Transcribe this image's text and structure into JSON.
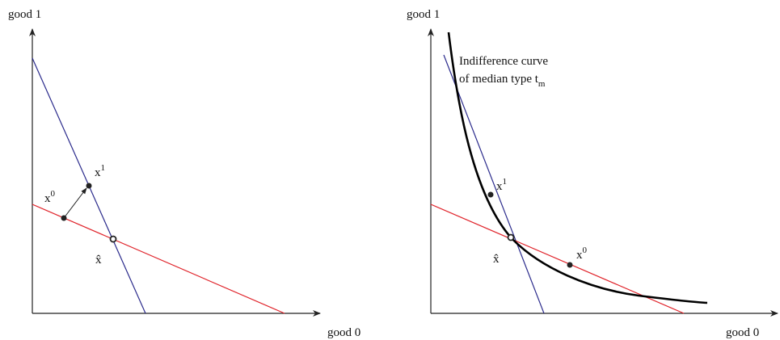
{
  "panels": [
    {
      "y_axis_label": "good 1",
      "x_axis_label": "good 0",
      "points": [
        {
          "label": "x",
          "superscript": "0"
        },
        {
          "label": "x",
          "superscript": "1"
        },
        {
          "label": "x̂"
        }
      ]
    },
    {
      "y_axis_label": "good 1",
      "x_axis_label": "good 0",
      "points": [
        {
          "label": "x",
          "superscript": "0"
        },
        {
          "label": "x",
          "superscript": "1"
        },
        {
          "label": "x̂"
        }
      ],
      "annotation": {
        "line1": "Indifference curve",
        "line2": "of median type t",
        "line2_subscript": "m"
      }
    }
  ]
}
